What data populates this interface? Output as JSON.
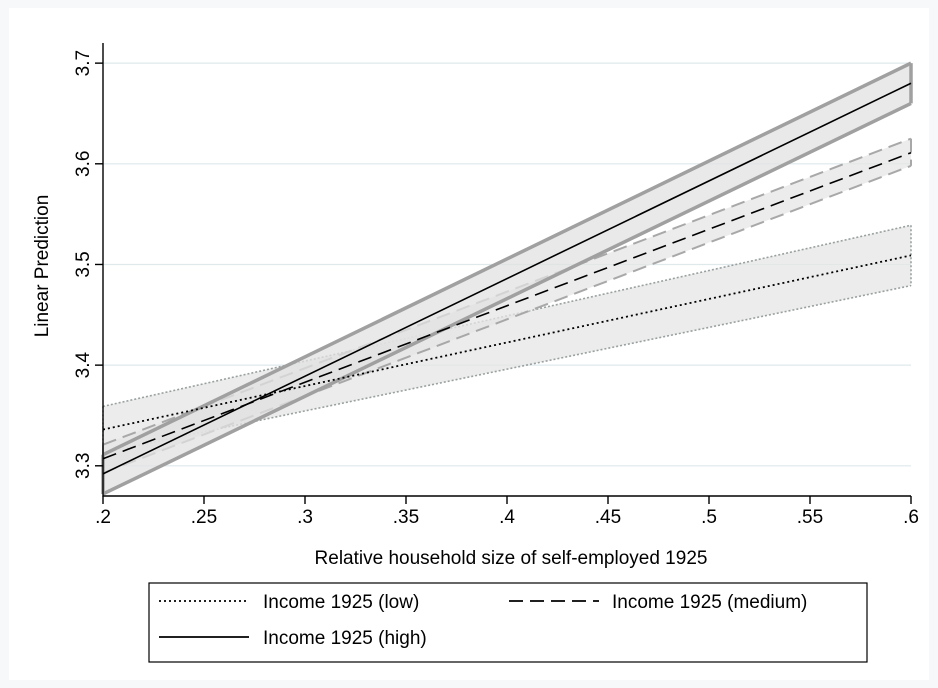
{
  "chart_data": {
    "type": "line",
    "title": "",
    "xlabel": "Relative household size of self-employed 1925",
    "ylabel": "Linear Prediction",
    "xlim": [
      0.2,
      0.6
    ],
    "ylim": [
      3.27,
      3.72
    ],
    "xticks": [
      0.2,
      0.25,
      0.3,
      0.35,
      0.4,
      0.45,
      0.5,
      0.55,
      0.6
    ],
    "xtick_labels": [
      ".2",
      ".25",
      ".3",
      ".35",
      ".4",
      ".45",
      ".5",
      ".55",
      ".6"
    ],
    "yticks": [
      3.3,
      3.4,
      3.5,
      3.6,
      3.7
    ],
    "ytick_labels": [
      "3.3",
      "3.4",
      "3.5",
      "3.6",
      "3.7"
    ],
    "grid": true,
    "legend": "bottom",
    "series": [
      {
        "name": "Income 1925 (low)",
        "style": "dotted",
        "x": [
          0.2,
          0.6
        ],
        "y": [
          3.336,
          3.509
        ],
        "ci_lower": [
          3.313,
          3.479
        ],
        "ci_upper": [
          3.359,
          3.539
        ],
        "line_color": "#000000",
        "band_edge_color": "#9aa0a0",
        "band_fill": "#e5e5e5"
      },
      {
        "name": "Income 1925 (medium)",
        "style": "dashed",
        "x": [
          0.2,
          0.6
        ],
        "y": [
          3.307,
          3.611
        ],
        "ci_lower": [
          3.293,
          3.598
        ],
        "ci_upper": [
          3.321,
          3.625
        ],
        "line_color": "#000000",
        "band_edge_color": "#a8a8a8",
        "band_fill": "#e5e5e5"
      },
      {
        "name": "Income 1925 (high)",
        "style": "solid",
        "x": [
          0.2,
          0.6
        ],
        "y": [
          3.292,
          3.68
        ],
        "ci_lower": [
          3.272,
          3.66
        ],
        "ci_upper": [
          3.311,
          3.7
        ],
        "line_color": "#000000",
        "band_edge_color": "#a0a0a0",
        "band_fill": "#e2e2e2"
      }
    ]
  },
  "colors": {
    "outer_background": "#f7f8fa",
    "plot_background": "#ffffff",
    "gridline": "#dfe9ec",
    "axis": "#000000"
  }
}
